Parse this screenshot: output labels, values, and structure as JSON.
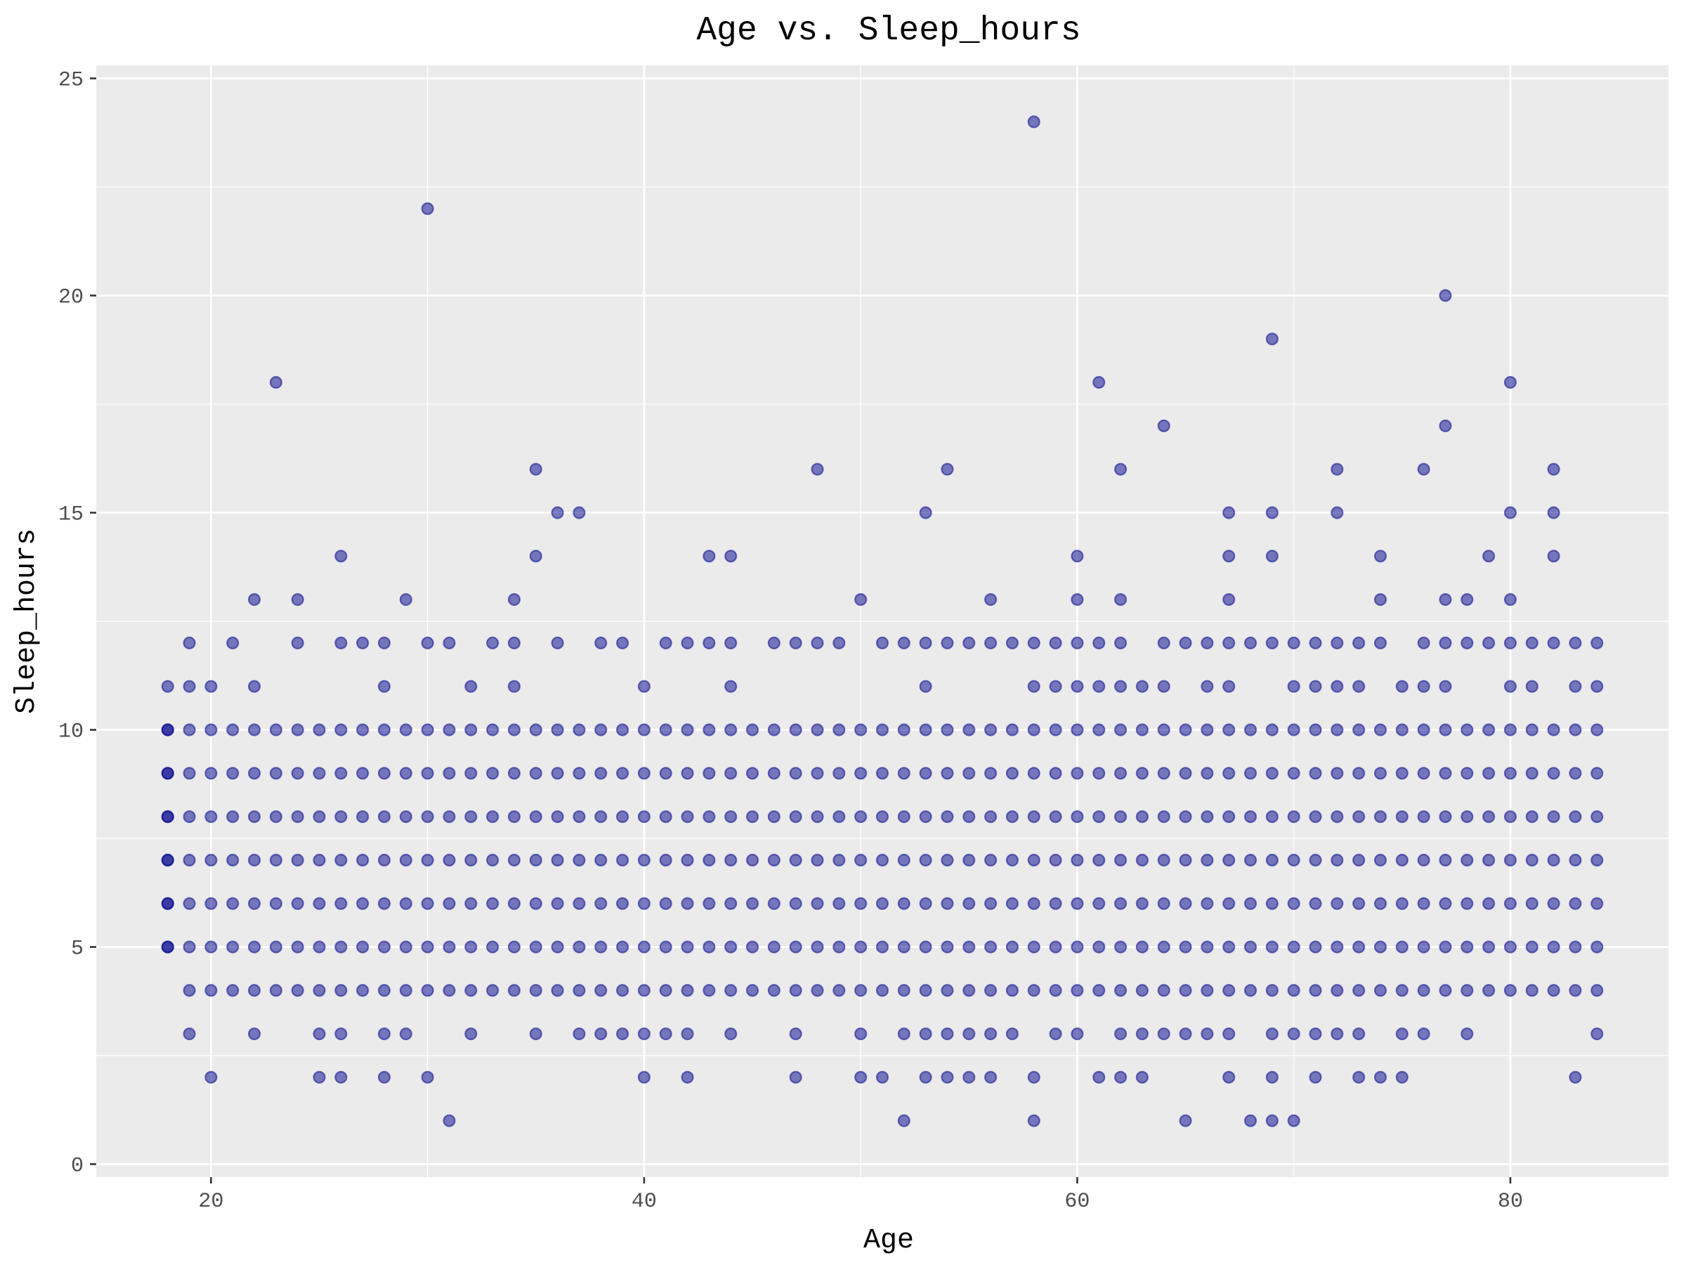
{
  "chart_data": {
    "type": "scatter",
    "title": "Age vs. Sleep_hours",
    "xlabel": "Age",
    "ylabel": "Sleep_hours",
    "xlim": [
      14.7,
      87.3
    ],
    "ylim": [
      -0.3,
      25.3
    ],
    "x_ticks": [
      20,
      40,
      60,
      80
    ],
    "y_ticks": [
      0,
      5,
      10,
      15,
      20,
      25
    ],
    "grid": true,
    "legend": "none",
    "colors": {
      "panel": "#ebebeb",
      "grid": "#ffffff",
      "point": "#00008b",
      "tick": "#333333"
    },
    "dense_band": {
      "x_range": [
        18,
        84
      ],
      "y_values": [
        5,
        6,
        7,
        8,
        9,
        10
      ]
    },
    "points": [
      [
        18,
        11
      ],
      [
        19,
        12
      ],
      [
        19,
        11
      ],
      [
        20,
        11
      ],
      [
        21,
        12
      ],
      [
        22,
        13
      ],
      [
        22,
        11
      ],
      [
        23,
        18
      ],
      [
        24,
        13
      ],
      [
        24,
        12
      ],
      [
        26,
        14
      ],
      [
        26,
        12
      ],
      [
        27,
        12
      ],
      [
        28,
        12
      ],
      [
        28,
        11
      ],
      [
        29,
        13
      ],
      [
        30,
        22
      ],
      [
        30,
        12
      ],
      [
        31,
        12
      ],
      [
        32,
        11
      ],
      [
        33,
        12
      ],
      [
        34,
        13
      ],
      [
        34,
        12
      ],
      [
        34,
        11
      ],
      [
        35,
        16
      ],
      [
        35,
        14
      ],
      [
        36,
        15
      ],
      [
        36,
        12
      ],
      [
        37,
        15
      ],
      [
        38,
        12
      ],
      [
        39,
        12
      ],
      [
        40,
        11
      ],
      [
        41,
        12
      ],
      [
        42,
        12
      ],
      [
        43,
        14
      ],
      [
        43,
        12
      ],
      [
        44,
        14
      ],
      [
        44,
        12
      ],
      [
        44,
        11
      ],
      [
        46,
        12
      ],
      [
        47,
        12
      ],
      [
        48,
        16
      ],
      [
        48,
        12
      ],
      [
        49,
        12
      ],
      [
        50,
        13
      ],
      [
        51,
        12
      ],
      [
        52,
        12
      ],
      [
        53,
        15
      ],
      [
        53,
        12
      ],
      [
        53,
        11
      ],
      [
        54,
        16
      ],
      [
        54,
        12
      ],
      [
        55,
        12
      ],
      [
        56,
        13
      ],
      [
        56,
        12
      ],
      [
        57,
        12
      ],
      [
        58,
        24
      ],
      [
        58,
        12
      ],
      [
        58,
        11
      ],
      [
        59,
        12
      ],
      [
        59,
        11
      ],
      [
        60,
        14
      ],
      [
        60,
        13
      ],
      [
        60,
        12
      ],
      [
        60,
        11
      ],
      [
        61,
        18
      ],
      [
        61,
        12
      ],
      [
        61,
        11
      ],
      [
        62,
        16
      ],
      [
        62,
        13
      ],
      [
        62,
        12
      ],
      [
        62,
        11
      ],
      [
        63,
        11
      ],
      [
        64,
        17
      ],
      [
        64,
        12
      ],
      [
        64,
        11
      ],
      [
        65,
        12
      ],
      [
        66,
        12
      ],
      [
        66,
        11
      ],
      [
        67,
        15
      ],
      [
        67,
        14
      ],
      [
        67,
        13
      ],
      [
        67,
        12
      ],
      [
        67,
        11
      ],
      [
        68,
        12
      ],
      [
        69,
        19
      ],
      [
        69,
        15
      ],
      [
        69,
        14
      ],
      [
        69,
        12
      ],
      [
        70,
        12
      ],
      [
        70,
        11
      ],
      [
        71,
        12
      ],
      [
        71,
        11
      ],
      [
        72,
        16
      ],
      [
        72,
        15
      ],
      [
        72,
        12
      ],
      [
        72,
        11
      ],
      [
        73,
        12
      ],
      [
        73,
        11
      ],
      [
        74,
        14
      ],
      [
        74,
        13
      ],
      [
        74,
        12
      ],
      [
        75,
        11
      ],
      [
        76,
        16
      ],
      [
        76,
        12
      ],
      [
        76,
        11
      ],
      [
        77,
        20
      ],
      [
        77,
        17
      ],
      [
        77,
        13
      ],
      [
        77,
        12
      ],
      [
        77,
        11
      ],
      [
        78,
        13
      ],
      [
        78,
        12
      ],
      [
        79,
        14
      ],
      [
        79,
        12
      ],
      [
        80,
        18
      ],
      [
        80,
        15
      ],
      [
        80,
        13
      ],
      [
        80,
        12
      ],
      [
        80,
        11
      ],
      [
        81,
        12
      ],
      [
        81,
        11
      ],
      [
        82,
        16
      ],
      [
        82,
        15
      ],
      [
        82,
        14
      ],
      [
        82,
        12
      ],
      [
        83,
        12
      ],
      [
        83,
        11
      ],
      [
        84,
        12
      ],
      [
        84,
        11
      ],
      [
        18,
        5
      ],
      [
        18,
        6
      ],
      [
        18,
        7
      ],
      [
        18,
        8
      ],
      [
        18,
        9
      ],
      [
        18,
        10
      ],
      [
        19,
        4
      ],
      [
        19,
        3
      ],
      [
        20,
        4
      ],
      [
        20,
        2
      ],
      [
        21,
        4
      ],
      [
        22,
        4
      ],
      [
        22,
        3
      ],
      [
        23,
        4
      ],
      [
        24,
        4
      ],
      [
        25,
        4
      ],
      [
        25,
        3
      ],
      [
        25,
        2
      ],
      [
        26,
        4
      ],
      [
        26,
        3
      ],
      [
        26,
        2
      ],
      [
        27,
        4
      ],
      [
        28,
        4
      ],
      [
        28,
        3
      ],
      [
        28,
        2
      ],
      [
        29,
        4
      ],
      [
        29,
        3
      ],
      [
        30,
        4
      ],
      [
        30,
        2
      ],
      [
        31,
        4
      ],
      [
        31,
        1
      ],
      [
        32,
        4
      ],
      [
        32,
        3
      ],
      [
        33,
        4
      ],
      [
        34,
        4
      ],
      [
        35,
        4
      ],
      [
        35,
        3
      ],
      [
        36,
        4
      ],
      [
        37,
        4
      ],
      [
        37,
        3
      ],
      [
        38,
        4
      ],
      [
        38,
        3
      ],
      [
        39,
        4
      ],
      [
        39,
        3
      ],
      [
        40,
        4
      ],
      [
        40,
        3
      ],
      [
        40,
        2
      ],
      [
        41,
        4
      ],
      [
        41,
        3
      ],
      [
        42,
        4
      ],
      [
        42,
        3
      ],
      [
        42,
        2
      ],
      [
        43,
        4
      ],
      [
        44,
        4
      ],
      [
        44,
        3
      ],
      [
        45,
        4
      ],
      [
        46,
        4
      ],
      [
        47,
        4
      ],
      [
        47,
        3
      ],
      [
        47,
        2
      ],
      [
        48,
        4
      ],
      [
        49,
        4
      ],
      [
        50,
        4
      ],
      [
        50,
        3
      ],
      [
        50,
        2
      ],
      [
        51,
        4
      ],
      [
        51,
        2
      ],
      [
        52,
        4
      ],
      [
        52,
        3
      ],
      [
        52,
        1
      ],
      [
        53,
        4
      ],
      [
        53,
        3
      ],
      [
        53,
        2
      ],
      [
        54,
        4
      ],
      [
        54,
        3
      ],
      [
        54,
        2
      ],
      [
        55,
        4
      ],
      [
        55,
        3
      ],
      [
        55,
        2
      ],
      [
        56,
        4
      ],
      [
        56,
        3
      ],
      [
        56,
        2
      ],
      [
        57,
        4
      ],
      [
        57,
        3
      ],
      [
        58,
        4
      ],
      [
        58,
        2
      ],
      [
        58,
        1
      ],
      [
        59,
        4
      ],
      [
        59,
        3
      ],
      [
        60,
        4
      ],
      [
        60,
        3
      ],
      [
        61,
        4
      ],
      [
        61,
        2
      ],
      [
        62,
        4
      ],
      [
        62,
        3
      ],
      [
        62,
        2
      ],
      [
        63,
        4
      ],
      [
        63,
        3
      ],
      [
        63,
        2
      ],
      [
        64,
        4
      ],
      [
        64,
        3
      ],
      [
        65,
        4
      ],
      [
        65,
        3
      ],
      [
        65,
        1
      ],
      [
        66,
        4
      ],
      [
        66,
        3
      ],
      [
        67,
        4
      ],
      [
        67,
        3
      ],
      [
        67,
        2
      ],
      [
        68,
        4
      ],
      [
        68,
        1
      ],
      [
        69,
        4
      ],
      [
        69,
        3
      ],
      [
        69,
        2
      ],
      [
        69,
        1
      ],
      [
        70,
        4
      ],
      [
        70,
        3
      ],
      [
        70,
        1
      ],
      [
        71,
        4
      ],
      [
        71,
        3
      ],
      [
        71,
        2
      ],
      [
        72,
        4
      ],
      [
        72,
        3
      ],
      [
        73,
        4
      ],
      [
        73,
        3
      ],
      [
        73,
        2
      ],
      [
        74,
        4
      ],
      [
        74,
        2
      ],
      [
        75,
        4
      ],
      [
        75,
        3
      ],
      [
        75,
        2
      ],
      [
        76,
        4
      ],
      [
        76,
        3
      ],
      [
        77,
        4
      ],
      [
        78,
        4
      ],
      [
        78,
        3
      ],
      [
        79,
        4
      ],
      [
        80,
        4
      ],
      [
        81,
        4
      ],
      [
        82,
        4
      ],
      [
        83,
        4
      ],
      [
        83,
        2
      ],
      [
        84,
        4
      ],
      [
        84,
        3
      ]
    ]
  }
}
